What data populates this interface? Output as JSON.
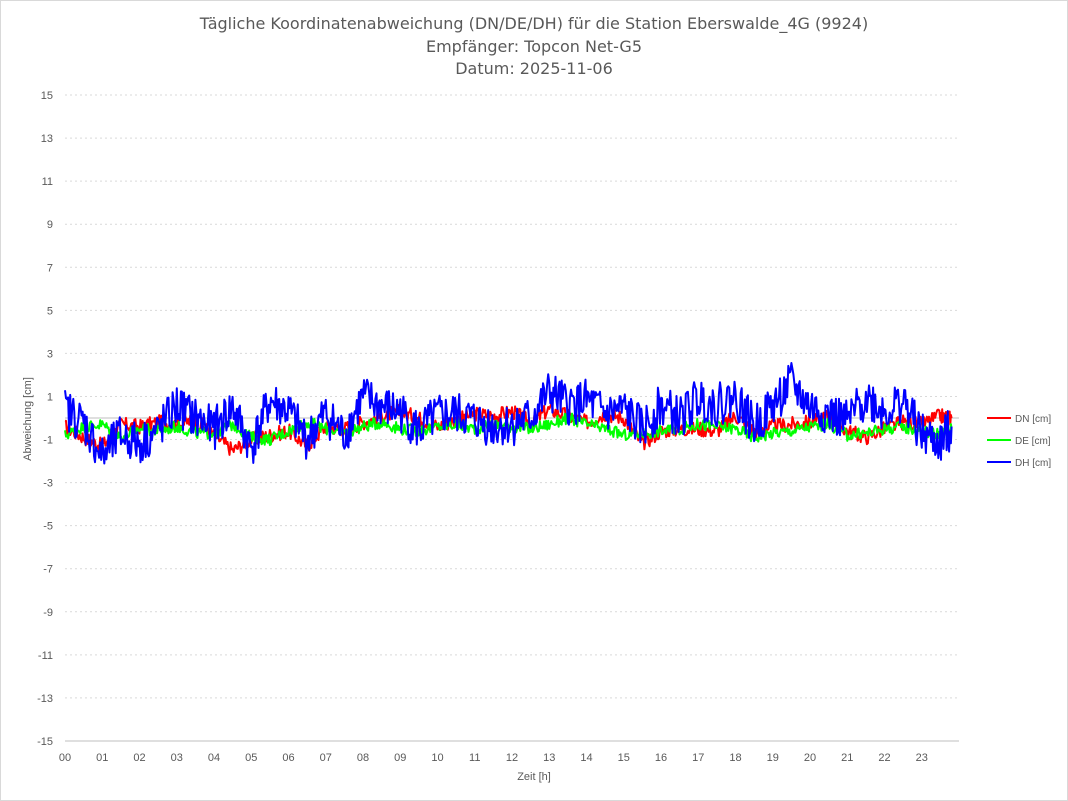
{
  "chart_data": {
    "type": "line",
    "title": [
      "Tägliche Koordinatenabweichung (DN/DE/DH) für die Station Eberswalde_4G (9924)",
      "Empfänger: Topcon Net-G5",
      "Datum: 2025-11-06"
    ],
    "xlabel": "Zeit [h]",
    "ylabel": "Abweichung [cm]",
    "xlim": [
      0,
      24
    ],
    "ylim": [
      -15,
      15
    ],
    "x_ticks": [
      "00",
      "01",
      "02",
      "03",
      "04",
      "05",
      "06",
      "07",
      "08",
      "09",
      "10",
      "11",
      "12",
      "13",
      "14",
      "15",
      "16",
      "17",
      "18",
      "19",
      "20",
      "21",
      "22",
      "23"
    ],
    "y_ticks": [
      "15",
      "13",
      "11",
      "9",
      "7",
      "5",
      "3",
      "1",
      "-1",
      "-3",
      "-5",
      "-7",
      "-9",
      "-11",
      "-13",
      "-15"
    ],
    "legend_position": "right",
    "series": [
      {
        "name": "DN [cm]",
        "color": "#ff0000",
        "x": [
          0,
          0.5,
          1,
          1.5,
          2,
          2.5,
          3,
          3.5,
          4,
          4.5,
          5,
          5.5,
          6,
          6.5,
          7,
          7.5,
          8,
          8.5,
          9,
          9.5,
          10,
          10.5,
          11,
          11.5,
          12,
          12.5,
          13,
          13.5,
          14,
          14.5,
          15,
          15.5,
          16,
          16.5,
          17,
          17.5,
          18,
          18.5,
          19,
          19.5,
          20,
          20.5,
          21,
          21.5,
          22,
          22.5,
          23,
          23.5,
          23.8
        ],
        "y": [
          -0.4,
          -0.9,
          -1.3,
          -0.3,
          -0.4,
          -0.2,
          -0.3,
          -0.1,
          -0.8,
          -1.5,
          -1.0,
          -0.8,
          -0.6,
          -1.3,
          -0.4,
          -0.5,
          -0.2,
          0.1,
          0.3,
          0.0,
          -0.4,
          -0.1,
          0.2,
          0.1,
          0.3,
          -0.2,
          0.4,
          0.1,
          -0.2,
          0.2,
          0.0,
          -1.2,
          -0.6,
          -0.5,
          -0.5,
          -0.6,
          0.1,
          -0.6,
          -0.4,
          -0.3,
          -0.2,
          0.1,
          -0.6,
          -0.9,
          -0.5,
          -0.2,
          -0.3,
          0.1,
          0.0
        ]
      },
      {
        "name": "DE [cm]",
        "color": "#00ff00",
        "x": [
          0,
          0.5,
          1,
          1.5,
          2,
          2.5,
          3,
          3.5,
          4,
          4.5,
          5,
          5.5,
          6,
          6.5,
          7,
          7.5,
          8,
          8.5,
          9,
          9.5,
          10,
          10.5,
          11,
          11.5,
          12,
          12.5,
          13,
          13.5,
          14,
          14.5,
          15,
          15.5,
          16,
          16.5,
          17,
          17.5,
          18,
          18.5,
          19,
          19.5,
          20,
          20.5,
          21,
          21.5,
          22,
          22.5,
          23,
          23.5,
          23.8
        ],
        "y": [
          -0.8,
          -0.4,
          -0.3,
          -0.9,
          -0.5,
          -0.6,
          -0.4,
          -0.7,
          -0.7,
          -0.3,
          -0.9,
          -1.0,
          -0.6,
          -0.2,
          -0.5,
          -0.7,
          -0.4,
          -0.2,
          -0.5,
          -0.6,
          -0.4,
          -0.3,
          -0.5,
          -0.3,
          -0.4,
          -0.5,
          -0.3,
          0.0,
          -0.3,
          -0.5,
          -0.8,
          -0.7,
          -0.6,
          -0.5,
          -0.3,
          -0.4,
          -0.5,
          -0.9,
          -0.7,
          -0.6,
          -0.4,
          -0.3,
          -0.8,
          -0.7,
          -0.5,
          -0.4,
          -0.6,
          -0.7,
          -0.5
        ]
      },
      {
        "name": "DH [cm]",
        "color": "#0000ff",
        "x": [
          0,
          0.5,
          1,
          1.5,
          2,
          2.5,
          3,
          3.5,
          4,
          4.5,
          5,
          5.5,
          6,
          6.5,
          7,
          7.5,
          8,
          8.5,
          9,
          9.5,
          10,
          10.5,
          11,
          11.5,
          12,
          12.5,
          13,
          13.5,
          14,
          14.5,
          15,
          15.5,
          16,
          16.5,
          17,
          17.5,
          18,
          18.5,
          19,
          19.5,
          20,
          20.5,
          21,
          21.5,
          22,
          22.5,
          23,
          23.5,
          23.8
        ],
        "y": [
          0.4,
          -0.2,
          -1.8,
          -0.8,
          -1.2,
          -0.6,
          0.6,
          0.0,
          -0.5,
          0.5,
          -1.4,
          0.8,
          0.3,
          -1.0,
          0.2,
          -0.8,
          1.0,
          0.5,
          0.3,
          -0.6,
          0.1,
          0.2,
          -0.1,
          -0.4,
          -0.3,
          0.0,
          1.2,
          0.6,
          0.8,
          0.2,
          0.4,
          -0.5,
          0.6,
          0.0,
          0.9,
          0.6,
          1.0,
          -0.4,
          0.6,
          1.6,
          0.5,
          0.2,
          -0.2,
          1.0,
          0.3,
          0.8,
          -0.8,
          -1.2,
          -0.4
        ]
      }
    ]
  }
}
